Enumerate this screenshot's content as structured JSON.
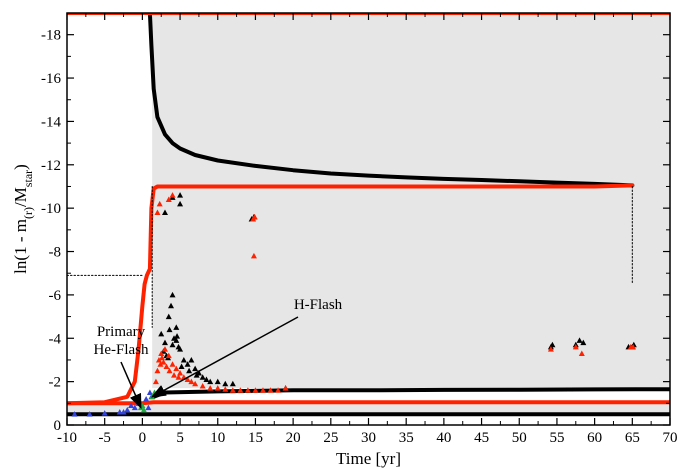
{
  "chart_data": {
    "type": "scatter",
    "title": "",
    "xlabel": "Time [yr]",
    "ylabel_parts": [
      "ln(1 - m",
      "(r)",
      "/M",
      "star",
      ")"
    ],
    "xlim": [
      -10,
      70
    ],
    "ylim": [
      0,
      -19
    ],
    "y_reversed": true,
    "grid": false,
    "x_ticks": [
      -10,
      -5,
      0,
      5,
      10,
      15,
      20,
      25,
      30,
      35,
      40,
      45,
      50,
      55,
      60,
      65,
      70
    ],
    "y_ticks": [
      0,
      -2,
      -4,
      -6,
      -8,
      -10,
      -12,
      -14,
      -16,
      -18
    ],
    "x_tick_labels": [
      "-10",
      "-5",
      "0",
      "5",
      "10",
      "15",
      "20",
      "25",
      "30",
      "35",
      "40",
      "45",
      "50",
      "55",
      "60",
      "65",
      "70"
    ],
    "y_tick_labels": [
      "0",
      "-2",
      "-4",
      "-6",
      "-8",
      "-10",
      "-12",
      "-14",
      "-16",
      "-18"
    ],
    "shaded_region_color": "#e6e6e6",
    "series": [
      {
        "color": "#000000",
        "style": "line",
        "x": [
          1.0,
          1.2,
          1.5,
          2,
          3,
          4,
          5,
          7,
          10,
          15,
          20,
          25,
          30,
          35,
          40,
          45,
          50,
          55,
          60,
          65
        ],
        "y": [
          -19,
          -17.5,
          -15.5,
          -14.2,
          -13.4,
          -13.0,
          -12.75,
          -12.45,
          -12.2,
          -11.95,
          -11.75,
          -11.6,
          -11.5,
          -11.42,
          -11.35,
          -11.3,
          -11.24,
          -11.18,
          -11.12,
          -11.05
        ]
      },
      {
        "color": "#ff2200",
        "style": "line",
        "x": [
          -10,
          -5,
          -2,
          -1,
          -0.5,
          0,
          0.3,
          0.6,
          1.0,
          1.2,
          1.5,
          2,
          5,
          10,
          20,
          30,
          40,
          50,
          60,
          65
        ],
        "y": [
          -1.0,
          -1.05,
          -1.3,
          -2.0,
          -3.5,
          -5.5,
          -6.5,
          -6.9,
          -7.2,
          -10.0,
          -10.9,
          -11.0,
          -11.0,
          -11.0,
          -11.0,
          -11.0,
          -11.0,
          -11.0,
          -11.0,
          -11.05
        ]
      },
      {
        "color": "#000000",
        "style": "line",
        "x": [
          1.5,
          3,
          10,
          20,
          30,
          40,
          50,
          60,
          70
        ],
        "y": [
          -1.3,
          -1.5,
          -1.55,
          -1.6,
          -1.6,
          -1.62,
          -1.63,
          -1.64,
          -1.65
        ]
      },
      {
        "color": "#ff2200",
        "style": "line",
        "x": [
          -10,
          0,
          1.5,
          10,
          20,
          40,
          70
        ],
        "y": [
          -1.0,
          -1.0,
          -1.05,
          -1.05,
          -1.05,
          -1.05,
          -1.05
        ]
      },
      {
        "color": "#000000",
        "style": "line",
        "x": [
          -10,
          70
        ],
        "y": [
          -0.5,
          -0.5
        ]
      },
      {
        "color": "#ff2200",
        "style": "line",
        "x": [
          -10,
          70
        ],
        "y": [
          -19,
          -19
        ]
      },
      {
        "color": "#000000",
        "style": "dotted",
        "x": [
          -10,
          0.2
        ],
        "y": [
          -6.9,
          -6.9
        ]
      },
      {
        "color": "#000000",
        "style": "dotted",
        "x": [
          1.3,
          1.3
        ],
        "y": [
          -11,
          -4.5
        ]
      },
      {
        "color": "#000000",
        "style": "dotted",
        "x": [
          65,
          65
        ],
        "y": [
          -11.0,
          -6.5
        ]
      },
      {
        "color": "#000000",
        "style": "scatter",
        "x": [
          2.5,
          3,
          3.5,
          4,
          4.5,
          5,
          3.2,
          3.8,
          4.2,
          5.5,
          6,
          6.5,
          7,
          7.5,
          8,
          9,
          10,
          11,
          12,
          3,
          4,
          5,
          14.5,
          14.8,
          5.0,
          4.5,
          3.6,
          4.8,
          6.2,
          7.2,
          8.5,
          2.8,
          3.4,
          4.0,
          4.6,
          5.2,
          54.2,
          54.4,
          57.5,
          58,
          58.5,
          64.5,
          65,
          65.2,
          19
        ],
        "y": [
          -4.2,
          -3.8,
          -5.0,
          -6.0,
          -4.5,
          -3.5,
          -3.2,
          -5.5,
          -4.0,
          -3.0,
          -2.8,
          -3.0,
          -2.6,
          -2.4,
          -2.2,
          -2.0,
          -2.0,
          -1.9,
          -1.9,
          -9.8,
          -10.5,
          -10.6,
          -9.5,
          -9.6,
          -10.2,
          -3.9,
          -4.4,
          -3.6,
          -2.5,
          -2.3,
          -2.1,
          -3.4,
          -3.1,
          -3.7,
          -4.1,
          -2.7,
          -3.6,
          -3.7,
          -3.7,
          -3.9,
          -3.8,
          -3.6,
          -3.6,
          -3.7,
          -1.7
        ]
      },
      {
        "color": "#ff2200",
        "style": "scatter",
        "x": [
          1.8,
          2,
          2.2,
          2.5,
          3,
          3.5,
          4,
          4.5,
          5,
          5.5,
          6,
          6.5,
          7,
          8,
          9,
          10,
          11,
          12,
          13,
          14,
          15,
          16,
          17,
          18,
          2.4,
          2.6,
          2.8,
          3.2,
          3.6,
          4.2,
          4.8,
          2.0,
          2.3,
          3.5,
          4.0,
          14.7,
          14.9,
          14.8,
          54.2,
          57.5,
          58.3,
          64.8,
          65.1,
          19
        ],
        "y": [
          -2.0,
          -2.5,
          -3.0,
          -3.3,
          -3.5,
          -3.2,
          -2.8,
          -2.6,
          -2.4,
          -2.2,
          -2.1,
          -2.0,
          -1.9,
          -1.8,
          -1.7,
          -1.7,
          -1.65,
          -1.6,
          -1.6,
          -1.6,
          -1.6,
          -1.6,
          -1.6,
          -1.6,
          -2.8,
          -3.1,
          -2.9,
          -2.7,
          -2.5,
          -2.3,
          -2.2,
          -9.8,
          -10.2,
          -10.4,
          -10.6,
          -9.5,
          -9.6,
          -7.8,
          -3.5,
          -3.6,
          -3.3,
          -3.6,
          -3.6,
          -1.7
        ]
      },
      {
        "color": "#3344dd",
        "style": "scatter",
        "x": [
          -9,
          -7,
          -5,
          -3,
          -2,
          -1,
          -0.5,
          -1.5,
          -2.5,
          0.5,
          1.0,
          1.2,
          0.8
        ],
        "y": [
          -0.5,
          -0.5,
          -0.55,
          -0.6,
          -0.7,
          -0.8,
          -1.0,
          -0.9,
          -0.6,
          -1.2,
          -1.5,
          -1.3,
          -0.8
        ]
      },
      {
        "color": "#22aa44",
        "style": "scatter",
        "x": [
          -0.2,
          0.0,
          0.2,
          1.3,
          1.6
        ],
        "y": [
          -0.8,
          -0.9,
          -0.7,
          -1.3,
          -1.5
        ]
      }
    ],
    "annotations": [
      {
        "text_lines": [
          "Primary",
          "He-Flash"
        ],
        "arrow_to": {
          "x": -0.2,
          "y": -0.8
        }
      },
      {
        "text_lines": [
          "H-Flash"
        ],
        "arrow_to": {
          "x": 1.3,
          "y": -1.3
        }
      }
    ]
  }
}
